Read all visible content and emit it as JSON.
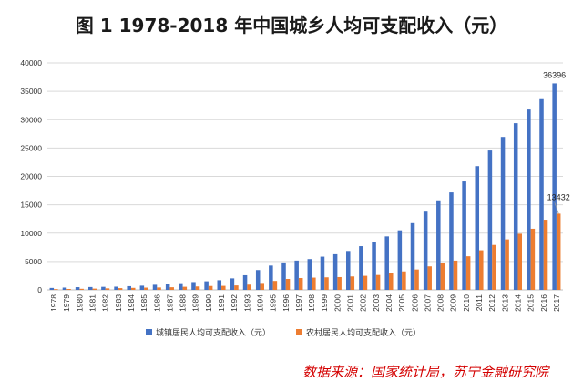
{
  "title": "图 1    1978-2018 年中国城乡人均可支配收入（元）",
  "source": "数据来源：国家统计局，苏宁金融研究院",
  "colors": {
    "urban": "#4472C4",
    "rural": "#ED7D31",
    "grid": "#d9d9d9"
  },
  "chart_data": {
    "type": "bar",
    "categories": [
      "1978",
      "1979",
      "1980",
      "1981",
      "1982",
      "1983",
      "1984",
      "1985",
      "1986",
      "1987",
      "1988",
      "1989",
      "1990",
      "1991",
      "1992",
      "1993",
      "1994",
      "1995",
      "1996",
      "1997",
      "1998",
      "1999",
      "2000",
      "2001",
      "2002",
      "2003",
      "2004",
      "2005",
      "2006",
      "2007",
      "2008",
      "2009",
      "2010",
      "2011",
      "2012",
      "2013",
      "2014",
      "2015",
      "2016",
      "2017"
    ],
    "series": [
      {
        "name": "城镇居民人均可支配收入（元）",
        "values": [
          343,
          405,
          478,
          500,
          535,
          565,
          652,
          739,
          900,
          1002,
          1180,
          1374,
          1510,
          1701,
          2027,
          2577,
          3496,
          4283,
          4839,
          5160,
          5425,
          5854,
          6280,
          6860,
          7703,
          8472,
          9422,
          10493,
          11759,
          13786,
          15781,
          17175,
          19109,
          21810,
          24565,
          26955,
          29381,
          31790,
          33616,
          36396
        ],
        "data_labels": {
          "39": "36396"
        }
      },
      {
        "name": "农村居民人均可支配收入（元）",
        "values": [
          134,
          160,
          191,
          223,
          270,
          310,
          355,
          398,
          424,
          463,
          545,
          602,
          686,
          709,
          784,
          922,
          1221,
          1578,
          1926,
          2090,
          2162,
          2210,
          2253,
          2366,
          2476,
          2622,
          2936,
          3255,
          3587,
          4140,
          4761,
          5153,
          5919,
          6977,
          7917,
          8896,
          9892,
          10772,
          12363,
          13432
        ],
        "data_labels": {
          "39": "13432"
        }
      }
    ],
    "ylim": [
      0,
      40000
    ],
    "yticks": [
      0,
      5000,
      10000,
      15000,
      20000,
      25000,
      30000,
      35000,
      40000
    ],
    "grid": true,
    "legend": "bottom"
  }
}
